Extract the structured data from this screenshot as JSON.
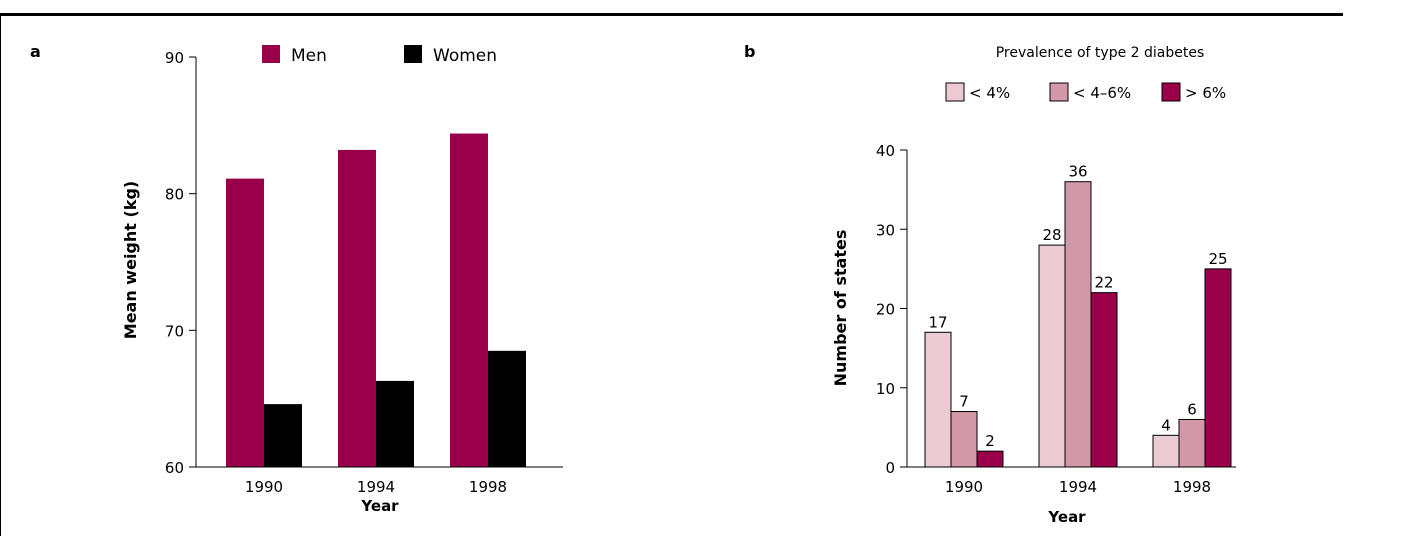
{
  "colors": {
    "men": "#9a0049",
    "women": "#000000",
    "low": "#eccbd4",
    "mid": "#d298a8",
    "high": "#9a0049",
    "axis": "#000000"
  },
  "chart_data": [
    {
      "panel": "a",
      "type": "bar",
      "title": "",
      "xlabel": "Year",
      "ylabel": "Mean weight (kg)",
      "ylim": [
        60,
        90
      ],
      "yticks": [
        60,
        70,
        80,
        90
      ],
      "categories": [
        "1990",
        "1994",
        "1998"
      ],
      "legend_position": "top",
      "series": [
        {
          "name": "Men",
          "values": [
            81.1,
            83.2,
            84.4
          ]
        },
        {
          "name": "Women",
          "values": [
            64.6,
            66.3,
            68.5
          ]
        }
      ]
    },
    {
      "panel": "b",
      "type": "bar",
      "title": "Prevalence of type 2 diabetes",
      "xlabel": "Year",
      "ylabel": "Number of states",
      "ylim": [
        0,
        40
      ],
      "yticks": [
        0,
        10,
        20,
        30,
        40
      ],
      "categories": [
        "1990",
        "1994",
        "1998"
      ],
      "legend_position": "top",
      "data_labels": true,
      "series": [
        {
          "name": "< 4%",
          "values": [
            17,
            28,
            4
          ]
        },
        {
          "name": "< 4–6%",
          "values": [
            7,
            36,
            6
          ]
        },
        {
          "name": "> 6%",
          "values": [
            2,
            22,
            25
          ]
        }
      ]
    }
  ]
}
